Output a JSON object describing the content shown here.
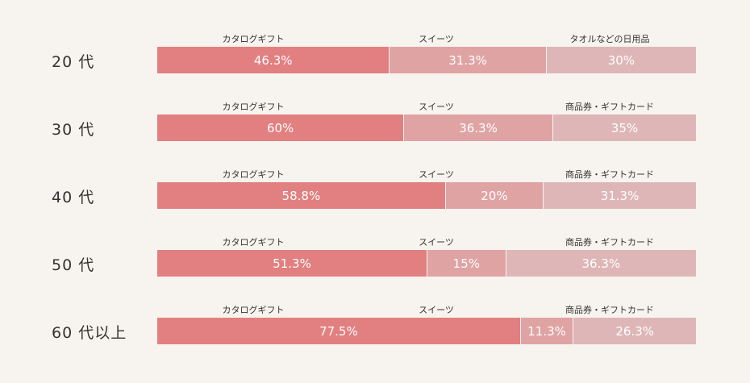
{
  "colors": {
    "background": "#f7f4ef",
    "segments": [
      "#e27f80",
      "#e0a3a4",
      "#dfb6b7"
    ]
  },
  "chart_data": {
    "type": "bar",
    "orientation": "horizontal",
    "stacked": true,
    "rows": [
      {
        "label": "20 代",
        "segments": [
          {
            "name": "カタログギフト",
            "value": 46.3,
            "text": "46.3%"
          },
          {
            "name": "スイーツ",
            "value": 31.3,
            "text": "31.3%"
          },
          {
            "name": "タオルなどの日用品",
            "value": 30,
            "text": "30%"
          }
        ]
      },
      {
        "label": "30 代",
        "segments": [
          {
            "name": "カタログギフト",
            "value": 60,
            "text": "60%"
          },
          {
            "name": "スイーツ",
            "value": 36.3,
            "text": "36.3%"
          },
          {
            "name": "商品券・ギフトカード",
            "value": 35,
            "text": "35%"
          }
        ]
      },
      {
        "label": "40 代",
        "segments": [
          {
            "name": "カタログギフト",
            "value": 58.8,
            "text": "58.8%"
          },
          {
            "name": "スイーツ",
            "value": 20,
            "text": "20%"
          },
          {
            "name": "商品券・ギフトカード",
            "value": 31.3,
            "text": "31.3%"
          }
        ]
      },
      {
        "label": "50 代",
        "segments": [
          {
            "name": "カタログギフト",
            "value": 51.3,
            "text": "51.3%"
          },
          {
            "name": "スイーツ",
            "value": 15,
            "text": "15%"
          },
          {
            "name": "商品券・ギフトカード",
            "value": 36.3,
            "text": "36.3%"
          }
        ]
      },
      {
        "label": "60 代以上",
        "segments": [
          {
            "name": "カタログギフト",
            "value": 77.5,
            "text": "77.5%"
          },
          {
            "name": "スイーツ",
            "value": 11.3,
            "text": "11.3%"
          },
          {
            "name": "商品券・ギフトカード",
            "value": 26.3,
            "text": "26.3%"
          }
        ]
      }
    ]
  }
}
